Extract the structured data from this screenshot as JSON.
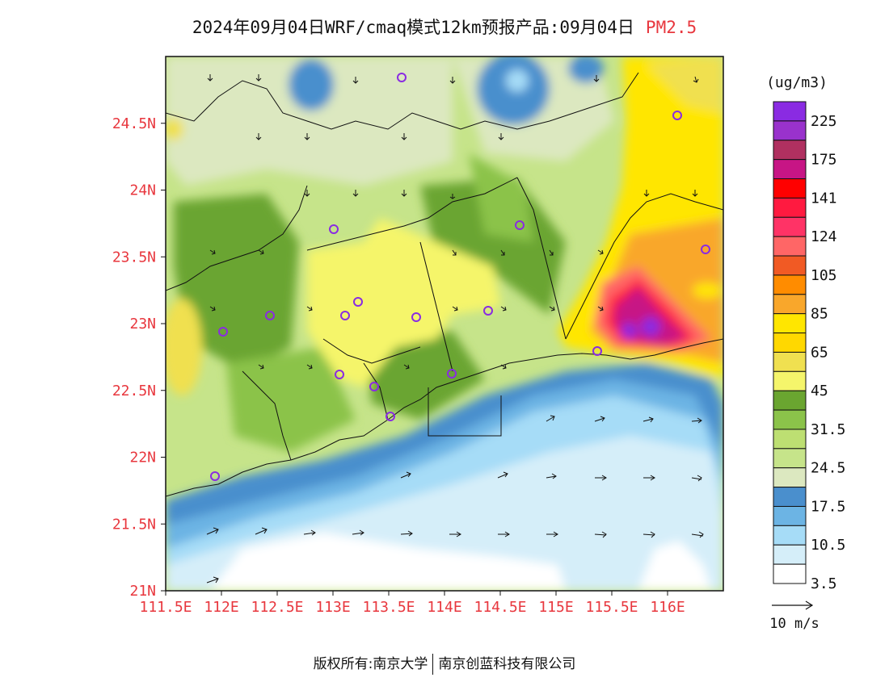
{
  "title": {
    "main": "2024年09月04日WRF/cmaq模式12km预报产品:09月04日",
    "species": "PM2.5"
  },
  "map": {
    "lat_labels": [
      "24.5N",
      "24N",
      "23.5N",
      "23N",
      "22.5N",
      "22N",
      "21.5N",
      "21N"
    ],
    "lon_labels": [
      "111.5E",
      "112E",
      "112.5E",
      "113E",
      "113.5E",
      "114E",
      "114.5E",
      "115E",
      "115.5E",
      "116E"
    ],
    "lat_range": [
      21,
      25
    ],
    "lon_range": [
      111.5,
      116.5
    ]
  },
  "legend": {
    "unit": "(ug/m3)",
    "colors": [
      "#8a2be2",
      "#9932cc",
      "#b03060",
      "#c71585",
      "#ff0000",
      "#ff1a40",
      "#ff3366",
      "#ff6666",
      "#f15a24",
      "#ff8c00",
      "#f9a72b",
      "#ffe600",
      "#ffd800",
      "#f0e050",
      "#f5f56b",
      "#6aa530",
      "#8bc34a",
      "#bddf72",
      "#c6e48a",
      "#dce8c0",
      "#4a8fcd",
      "#6cb4e4",
      "#a6dcf7",
      "#d5eef9",
      "#ffffff"
    ],
    "labels": [
      "225",
      "175",
      "141",
      "124",
      "105",
      "85",
      "65",
      "45",
      "31.5",
      "24.5",
      "17.5",
      "10.5",
      "3.5"
    ]
  },
  "wind": {
    "scale_label": "10 m/s"
  },
  "footer": {
    "left": "版权所有:南京大学",
    "right": "南京创蓝科技有限公司"
  }
}
